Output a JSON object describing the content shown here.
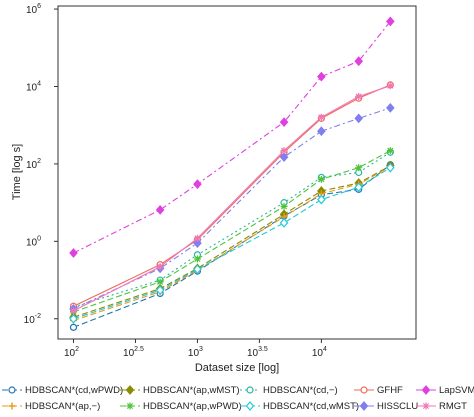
{
  "chart_data": {
    "type": "line",
    "xlabel": "Dataset size [log]",
    "ylabel": "Time [log s]",
    "x_scale": "log10",
    "y_scale": "log10",
    "xlim": [
      75,
      58000
    ],
    "ylim": [
      0.003,
      1200000
    ],
    "grid": false,
    "legend_placement": "bottom",
    "x_ticks": [
      {
        "value": 100,
        "base": "10",
        "exp": "2"
      },
      {
        "value": 316.2,
        "base": "10",
        "exp": "2.5"
      },
      {
        "value": 1000,
        "base": "10",
        "exp": "3"
      },
      {
        "value": 3162,
        "base": "10",
        "exp": "3.5"
      },
      {
        "value": 10000,
        "base": "10",
        "exp": "4"
      }
    ],
    "y_ticks": [
      {
        "value": 0.01,
        "base": "10",
        "exp": "-2"
      },
      {
        "value": 1,
        "base": "10",
        "exp": "0"
      },
      {
        "value": 100,
        "base": "10",
        "exp": "2"
      },
      {
        "value": 10000,
        "base": "10",
        "exp": "4"
      },
      {
        "value": 1000000,
        "base": "10",
        "exp": "6"
      }
    ],
    "x": [
      100,
      500,
      1000,
      5000,
      10000,
      20000,
      36000
    ],
    "series": [
      {
        "name": "HDBSCAN*(cd,wPWD)",
        "color": "#1f77b4",
        "marker": "circle-open",
        "dash": "6,3",
        "values": [
          0.006,
          0.045,
          0.17,
          4.5,
          16,
          22,
          95
        ]
      },
      {
        "name": "HDBSCAN*(ap,wMST)",
        "color": "#8b8b00",
        "marker": "diamond",
        "dash": "6,3",
        "values": [
          0.011,
          0.06,
          0.2,
          5,
          20,
          32,
          90
        ]
      },
      {
        "name": "HDBSCAN*(cd,−)",
        "color": "#2ab5a0",
        "marker": "circle-open",
        "dash": "2,3",
        "values": [
          0.02,
          0.1,
          0.45,
          10,
          45,
          60,
          200
        ]
      },
      {
        "name": "GFHF",
        "color": "#f06a5a",
        "marker": "circle-open",
        "dash": "",
        "values": [
          0.021,
          0.25,
          1.1,
          200,
          1500,
          5000,
          11000
        ]
      },
      {
        "name": "LapSVM",
        "color": "#e040e0",
        "marker": "diamond",
        "dash": "6,3,2,3",
        "values": [
          0.5,
          6.5,
          30,
          1200,
          18000,
          45000,
          480000
        ]
      },
      {
        "name": "HDBSCAN*(ap,−)",
        "color": "#e89b1a",
        "marker": "plus",
        "dash": "6,3",
        "values": [
          0.009,
          0.05,
          0.18,
          4.3,
          17,
          30,
          85
        ]
      },
      {
        "name": "HDBSCAN*(ap,wPWD)",
        "color": "#4fc43a",
        "marker": "asterisk",
        "dash": "6,3",
        "values": [
          0.015,
          0.09,
          0.35,
          8,
          40,
          80,
          220
        ]
      },
      {
        "name": "HDBSCAN*(cd,wMST)",
        "color": "#22c9d6",
        "marker": "diamond-open",
        "dash": "6,3",
        "values": [
          0.01,
          0.055,
          0.19,
          3,
          12,
          25,
          80
        ]
      },
      {
        "name": "HISSCLU",
        "color": "#7f7ff0",
        "marker": "diamond",
        "dash": "6,3,2,3",
        "values": [
          0.018,
          0.2,
          0.9,
          150,
          700,
          1500,
          2800
        ]
      },
      {
        "name": "RMGT",
        "color": "#f078b4",
        "marker": "asterisk",
        "dash": "",
        "values": [
          0.016,
          0.22,
          1.2,
          220,
          1600,
          5500,
          10500
        ]
      }
    ]
  }
}
